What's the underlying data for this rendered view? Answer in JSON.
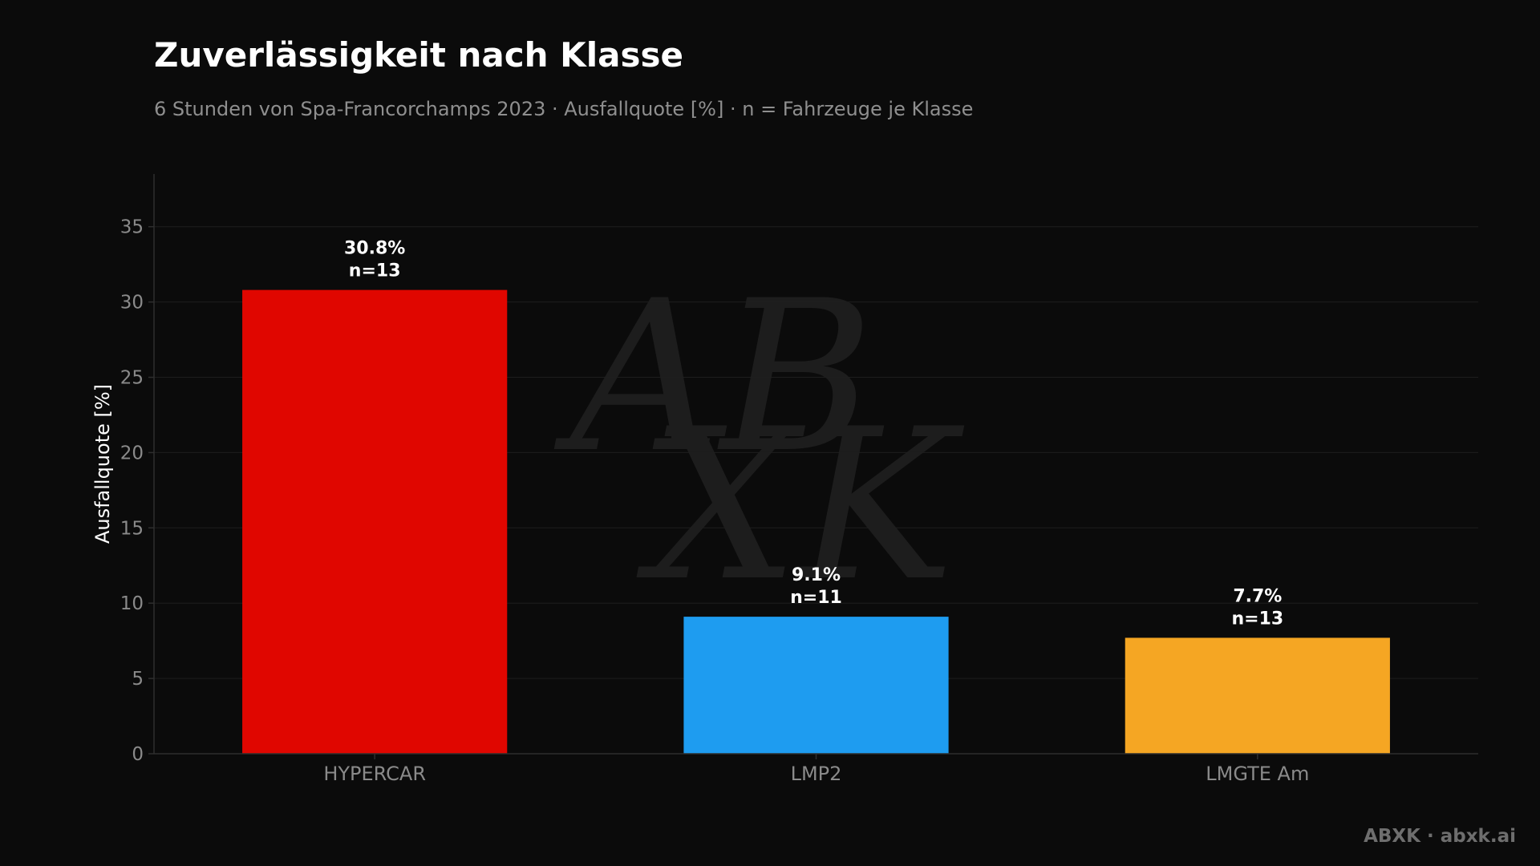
{
  "title": "Zuverlässigkeit nach Klasse",
  "subtitle": "6 Stunden von Spa-Francorchamps 2023 · Ausfallquote [%] · n = Fahrzeuge je Klasse",
  "footer": "ABXK · abxk.ai",
  "watermark": {
    "line1": "AB",
    "line2": "XK"
  },
  "colors": {
    "background": "#0b0b0b",
    "grid": "#1e1e1e",
    "axis": "#2e2e2e"
  },
  "chart_data": {
    "type": "bar",
    "title": "Zuverlässigkeit nach Klasse",
    "subtitle": "6 Stunden von Spa-Francorchamps 2023 · Ausfallquote [%] · n = Fahrzeuge je Klasse",
    "xlabel": "",
    "ylabel": "Ausfallquote [%]",
    "ylim": [
      0,
      38.5
    ],
    "yticks": [
      0,
      5,
      10,
      15,
      20,
      25,
      30,
      35
    ],
    "grid": true,
    "categories": [
      "HYPERCAR",
      "LMP2",
      "LMGTE Am"
    ],
    "values": [
      30.8,
      9.1,
      7.7
    ],
    "value_labels": [
      "30.8%",
      "9.1%",
      "7.7%"
    ],
    "n_labels": [
      "n=13",
      "n=11",
      "n=13"
    ],
    "bar_colors": [
      "#e00600",
      "#1e9cf0",
      "#f5a623"
    ]
  }
}
